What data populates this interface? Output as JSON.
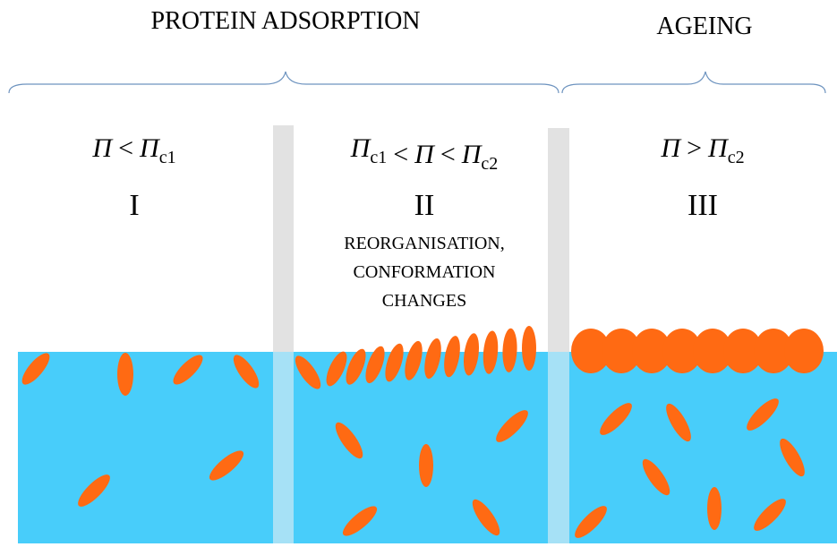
{
  "header": {
    "adsorption": "PROTEIN ADSORPTION",
    "ageing": "AGEING"
  },
  "stages": [
    {
      "condition": [
        {
          "text": "Π"
        },
        {
          "text": "<"
        },
        {
          "text": "Π",
          "sub": "c1"
        }
      ],
      "numeral": "I"
    },
    {
      "condition": [
        {
          "text": "Π",
          "sub": "c1"
        },
        {
          "text": "<"
        },
        {
          "text": "Π"
        },
        {
          "text": "<"
        },
        {
          "text": "Π",
          "sub": "c2"
        }
      ],
      "numeral": "II",
      "note": [
        "REORGANISATION,",
        "CONFORMATION",
        "CHANGES"
      ]
    },
    {
      "condition": [
        {
          "text": "Π"
        },
        {
          "text": ">"
        },
        {
          "text": "Π",
          "sub": "c2"
        }
      ],
      "numeral": "III"
    }
  ]
}
